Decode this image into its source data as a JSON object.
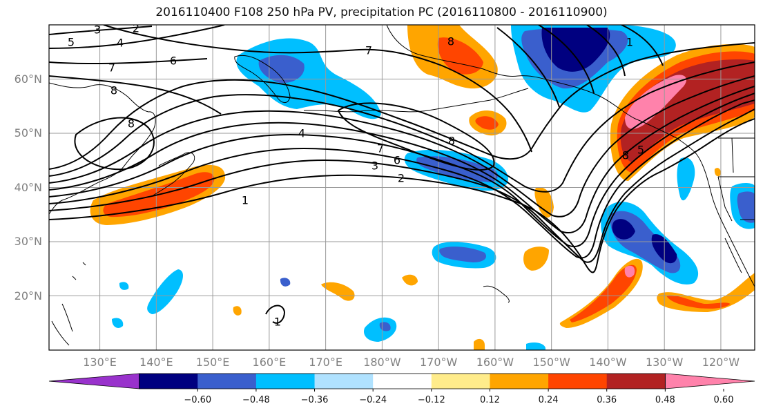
{
  "title": "2016110400 F108 250 hPa PV, precipitation PC (2016110800 - 2016110900)",
  "map": {
    "projection": "equirectangular",
    "lon_range": [
      121,
      246
    ],
    "lat_range": [
      10,
      70
    ],
    "gridlines": true,
    "lat_labels": [
      "20°N",
      "30°N",
      "40°N",
      "50°N",
      "60°N"
    ],
    "lat_values": [
      20,
      30,
      40,
      50,
      60
    ],
    "lon_labels": [
      "130°E",
      "140°E",
      "150°E",
      "160°E",
      "170°E",
      "180°W",
      "170°W",
      "160°W",
      "150°W",
      "140°W",
      "130°W",
      "120°W"
    ],
    "lon_values": [
      130,
      140,
      150,
      160,
      170,
      180,
      190,
      200,
      210,
      220,
      230,
      240
    ],
    "contour_labels": [
      "1",
      "2",
      "3",
      "4",
      "5",
      "6",
      "7",
      "8"
    ]
  },
  "colorbar": {
    "ticks": [
      "−0.60",
      "−0.48",
      "−0.36",
      "−0.24",
      "−0.12",
      "0.12",
      "0.24",
      "0.36",
      "0.48",
      "0.60"
    ],
    "colors": [
      "#9932cc",
      "#000080",
      "#3a5fcd",
      "#00bfff",
      "#b0e2ff",
      "#ffffff",
      "#ffec8b",
      "#ffa500",
      "#ff4500",
      "#b22222",
      "#ff82ab"
    ],
    "extend": "both"
  }
}
